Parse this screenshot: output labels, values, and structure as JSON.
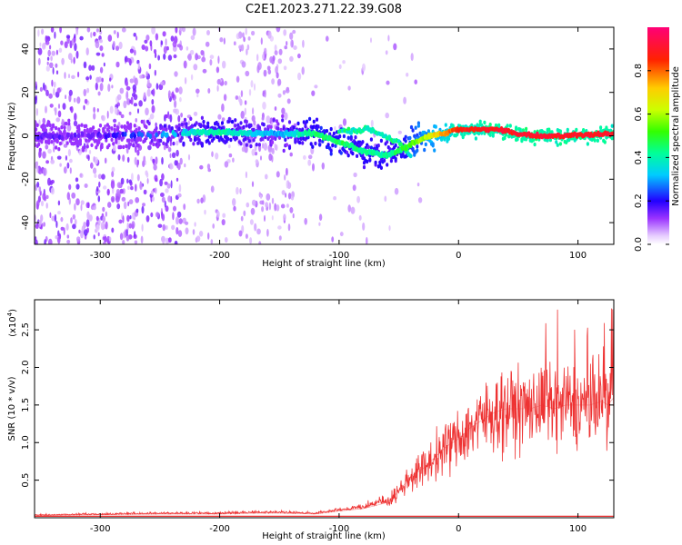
{
  "title": "C2E1.2023.271.22.39.G08",
  "chart_data": [
    {
      "type": "heatmap",
      "xlabel": "Height of straight line (km)",
      "ylabel": "Frequency (Hz)",
      "xlim": [
        -355,
        130
      ],
      "ylim": [
        -50,
        50
      ],
      "xticks": [
        -300,
        -200,
        -100,
        0,
        100
      ],
      "yticks": [
        -40,
        -20,
        0,
        20,
        40
      ],
      "colorbar": {
        "label": "Normalized spectral amplitude",
        "range": [
          0,
          1
        ],
        "ticks": [
          0.0,
          0.2,
          0.4,
          0.6,
          0.8
        ],
        "tick_labels": [
          "0.0",
          "0.2",
          "0.4",
          "0.6",
          "0.8"
        ]
      },
      "ridge": {
        "description_points": [
          {
            "x": -300,
            "y": 0,
            "amp": 0.15
          },
          {
            "x": -250,
            "y": 1,
            "amp": 0.3
          },
          {
            "x": -200,
            "y": 2,
            "amp": 0.42
          },
          {
            "x": -175,
            "y": 1,
            "amp": 0.35
          },
          {
            "x": -150,
            "y": 1,
            "amp": 0.3
          },
          {
            "x": -120,
            "y": 1,
            "amp": 0.45
          },
          {
            "x": -100,
            "y": -3,
            "amp": 0.45
          },
          {
            "x": -80,
            "y": -7,
            "amp": 0.42
          },
          {
            "x": -60,
            "y": -9,
            "amp": 0.4
          },
          {
            "x": -50,
            "y": -7,
            "amp": 0.45
          },
          {
            "x": -30,
            "y": -1,
            "amp": 0.6
          },
          {
            "x": 0,
            "y": 3,
            "amp": 0.85
          },
          {
            "x": 30,
            "y": 3,
            "amp": 0.9
          },
          {
            "x": 60,
            "y": 0,
            "amp": 0.92
          },
          {
            "x": 90,
            "y": 0,
            "amp": 0.9
          },
          {
            "x": 130,
            "y": 1,
            "amp": 0.9
          }
        ],
        "secondary_branch": [
          {
            "x": -100,
            "y": 2
          },
          {
            "x": -75,
            "y": 3
          },
          {
            "x": -50,
            "y": -3
          },
          {
            "x": -40,
            "y": -10
          }
        ]
      }
    },
    {
      "type": "line",
      "xlabel": "Height of straight line (km)",
      "ylabel": "SNR (10 * v/v)",
      "y_multiplier": "(x10",
      "y_exponent": "4",
      "y_multiplier_close": ")",
      "xlim": [
        -355,
        130
      ],
      "ylim": [
        0,
        2.9
      ],
      "xticks": [
        -300,
        -200,
        -100,
        0,
        100
      ],
      "yticks": [
        0.5,
        1.0,
        1.5,
        2.0,
        2.5
      ],
      "ytick_labels": [
        "0.5",
        "1.0",
        "1.5",
        "2.0",
        "2.5"
      ],
      "color": "#ee3333",
      "series": [
        {
          "x": [
            -355,
            -300,
            -250,
            -200,
            -170,
            -150,
            -120,
            -100,
            -80,
            -60,
            -50,
            -40,
            -30,
            -20,
            -10,
            0,
            10,
            20,
            30,
            40,
            50,
            60,
            70,
            80,
            90,
            100,
            110,
            120,
            125,
            130
          ],
          "values": [
            0.03,
            0.04,
            0.05,
            0.05,
            0.06,
            0.06,
            0.05,
            0.09,
            0.12,
            0.2,
            0.35,
            0.55,
            0.65,
            0.8,
            0.95,
            1.05,
            1.2,
            1.3,
            1.4,
            1.45,
            1.45,
            1.45,
            1.5,
            1.45,
            1.5,
            1.5,
            1.5,
            1.55,
            1.5,
            1.6
          ]
        }
      ]
    }
  ]
}
